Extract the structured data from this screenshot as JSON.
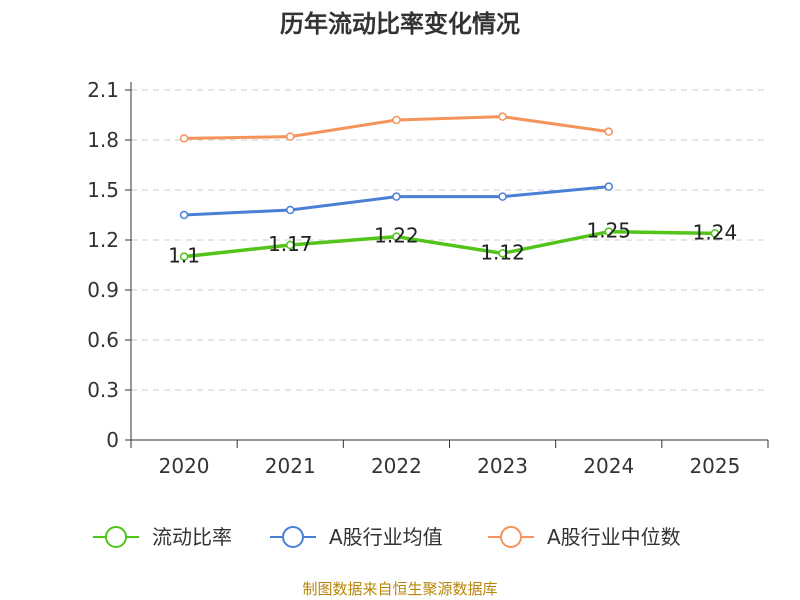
{
  "chart_data": {
    "type": "line",
    "title": "历年流动比率变化情况",
    "categories": [
      "2020",
      "2021",
      "2022",
      "2023",
      "2024",
      "2025"
    ],
    "ylim": [
      0,
      2.1
    ],
    "yticks": [
      "0",
      "0.3",
      "0.6",
      "0.9",
      "1.2",
      "1.5",
      "1.8",
      "2.1"
    ],
    "grid": true,
    "legend_position": "bottom",
    "series": [
      {
        "name": "流动比率",
        "color": "#52c41a",
        "values": [
          1.1,
          1.17,
          1.22,
          1.12,
          1.25,
          1.24
        ],
        "labels": [
          "1.1",
          "1.17",
          "1.22",
          "1.12",
          "1.25",
          "1.24"
        ]
      },
      {
        "name": "A股行业均值",
        "color": "#4a7fd6",
        "values": [
          1.35,
          1.38,
          1.46,
          1.46,
          1.52,
          null
        ]
      },
      {
        "name": "A股行业中位数",
        "color": "#f4935a",
        "values": [
          1.81,
          1.82,
          1.92,
          1.94,
          1.85,
          null
        ]
      }
    ]
  },
  "source": "制图数据来自恒生聚源数据库"
}
